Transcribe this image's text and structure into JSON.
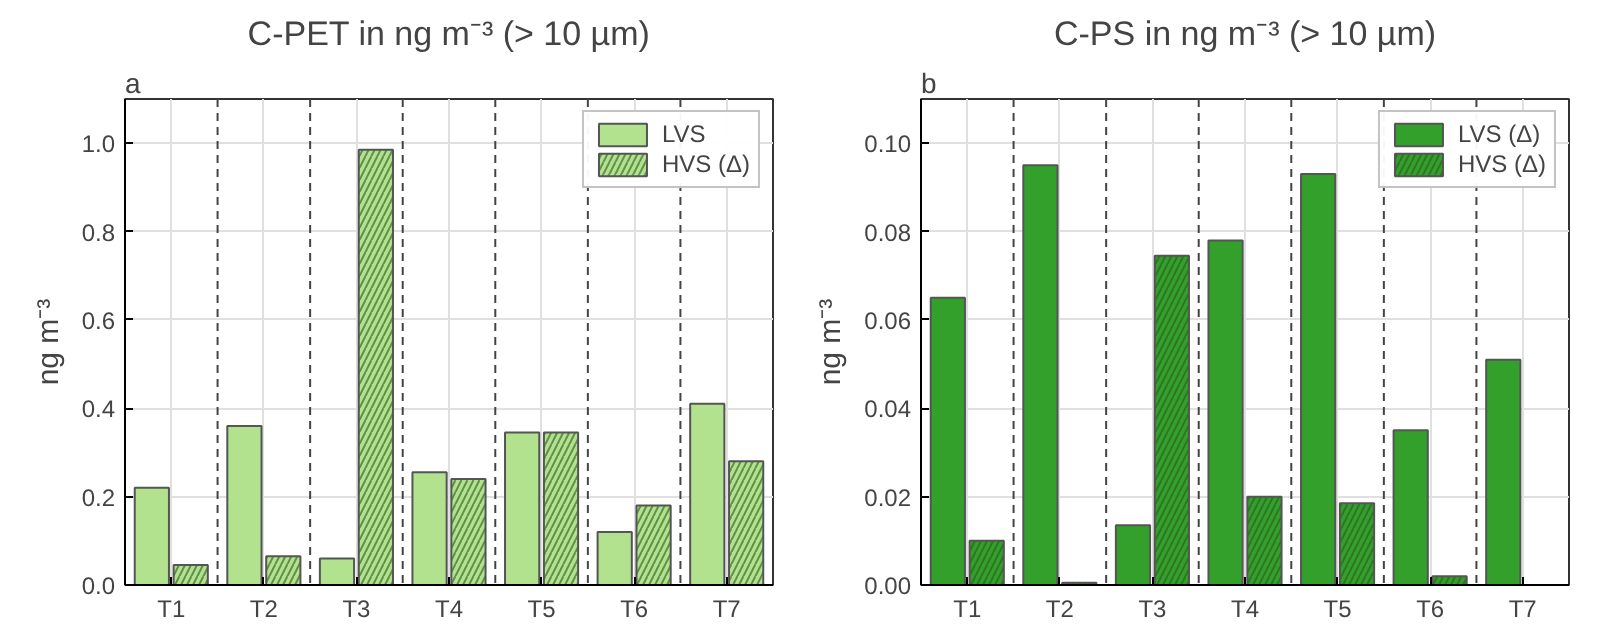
{
  "chart_data": [
    {
      "type": "bar",
      "title": "C-PET in ng m⁻³ (> 10 µm)",
      "ylabel": "ng m⁻³",
      "annotations": [
        "a"
      ],
      "categories": [
        "T1",
        "T2",
        "T3",
        "T4",
        "T5",
        "T6",
        "T7"
      ],
      "series": [
        {
          "name": "LVS",
          "color": "#b3e28f",
          "values": [
            0.22,
            0.36,
            0.06,
            0.255,
            0.345,
            0.12,
            0.41
          ]
        },
        {
          "name": "HVS (Δ)",
          "color": "#b3e28f",
          "values": [
            0.045,
            0.065,
            0.985,
            0.24,
            0.345,
            0.18,
            0.28
          ]
        }
      ],
      "ylim": [
        0,
        1.1
      ],
      "yticks": [
        {
          "value": 0,
          "label": "0.0"
        },
        0.2,
        0.4,
        0.6,
        0.8,
        {
          "value": 1,
          "label": "1.0"
        }
      ],
      "grid": true,
      "legend": "top right"
    },
    {
      "type": "bar",
      "title": "C-PS in ng m⁻³ (> 10 µm)",
      "ylabel": "ng m⁻³",
      "annotations": [
        "b"
      ],
      "categories": [
        "T1",
        "T2",
        "T3",
        "T4",
        "T5",
        "T6",
        "T7"
      ],
      "series": [
        {
          "name": "LVS (Δ)",
          "color": "#33a02c",
          "values": [
            0.065,
            0.095,
            0.0135,
            0.078,
            0.093,
            0.035,
            0.051
          ]
        },
        {
          "name": "HVS (Δ)",
          "color": "#33a02c",
          "values": [
            0.01,
            0.0005,
            0.0745,
            0.02,
            0.0185,
            0.002,
            null
          ]
        }
      ],
      "ylim": [
        0,
        0.11
      ],
      "yticks": [
        {
          "value": 0,
          "label": "0.00"
        },
        0.02,
        0.04,
        0.06,
        0.08,
        {
          "value": 0.1,
          "label": "0.10"
        }
      ],
      "grid": true,
      "legend": "top right"
    }
  ]
}
